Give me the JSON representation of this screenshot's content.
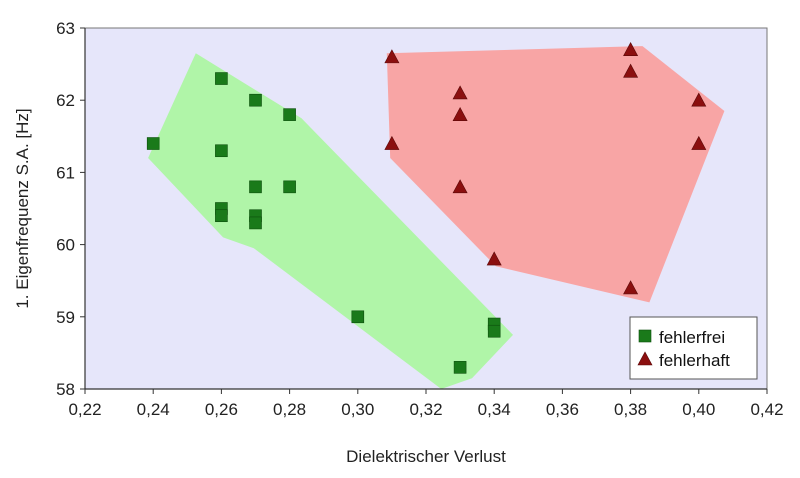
{
  "chart_data": {
    "type": "scatter",
    "xlabel": "Dielektrischer Verlust",
    "ylabel": "1. Eigenfrequenz S.A. [Hz]",
    "xlim": [
      0.22,
      0.42
    ],
    "ylim": [
      58,
      63
    ],
    "x_ticks": [
      0.22,
      0.24,
      0.26,
      0.28,
      0.3,
      0.32,
      0.34,
      0.36,
      0.38,
      0.4,
      0.42
    ],
    "x_tick_labels": [
      "0,22",
      "0,24",
      "0,26",
      "0,28",
      "0,30",
      "0,32",
      "0,34",
      "0,36",
      "0,38",
      "0,40",
      "0,42"
    ],
    "y_ticks": [
      58,
      59,
      60,
      61,
      62,
      63
    ],
    "y_tick_labels": [
      "58",
      "59",
      "60",
      "61",
      "62",
      "63"
    ],
    "grid": false,
    "legend_position": "bottom-right",
    "background_color": "#e6e6fa",
    "series": [
      {
        "name": "fehlerfrei",
        "marker": "square",
        "color": "#1a7a1a",
        "region_color": "#b0f5a8",
        "region_hull": [
          [
            0.2385,
            61.2
          ],
          [
            0.2525,
            62.65
          ],
          [
            0.2835,
            61.75
          ],
          [
            0.3,
            60.95
          ],
          [
            0.3455,
            58.75
          ],
          [
            0.3335,
            58.15
          ],
          [
            0.3245,
            58.0
          ],
          [
            0.2695,
            59.95
          ],
          [
            0.2605,
            60.1
          ]
        ],
        "points": [
          [
            0.24,
            61.4
          ],
          [
            0.26,
            62.3
          ],
          [
            0.27,
            62.0
          ],
          [
            0.28,
            61.8
          ],
          [
            0.26,
            61.3
          ],
          [
            0.27,
            60.8
          ],
          [
            0.28,
            60.8
          ],
          [
            0.26,
            60.5
          ],
          [
            0.26,
            60.4
          ],
          [
            0.27,
            60.4
          ],
          [
            0.27,
            60.3
          ],
          [
            0.3,
            59.0
          ],
          [
            0.34,
            58.9
          ],
          [
            0.34,
            58.8
          ],
          [
            0.33,
            58.3
          ]
        ]
      },
      {
        "name": "fehlerhaft",
        "marker": "triangle",
        "color": "#8b0f0f",
        "region_color": "#f8a5a5",
        "region_hull": [
          [
            0.3085,
            62.65
          ],
          [
            0.3835,
            62.75
          ],
          [
            0.4075,
            61.85
          ],
          [
            0.3855,
            59.2
          ],
          [
            0.3405,
            59.7
          ],
          [
            0.3095,
            61.2
          ]
        ],
        "points": [
          [
            0.31,
            62.6
          ],
          [
            0.31,
            61.4
          ],
          [
            0.33,
            62.1
          ],
          [
            0.33,
            61.8
          ],
          [
            0.33,
            60.8
          ],
          [
            0.34,
            59.8
          ],
          [
            0.38,
            62.7
          ],
          [
            0.38,
            62.4
          ],
          [
            0.38,
            59.4
          ],
          [
            0.4,
            62.0
          ],
          [
            0.4,
            61.4
          ]
        ]
      }
    ]
  }
}
